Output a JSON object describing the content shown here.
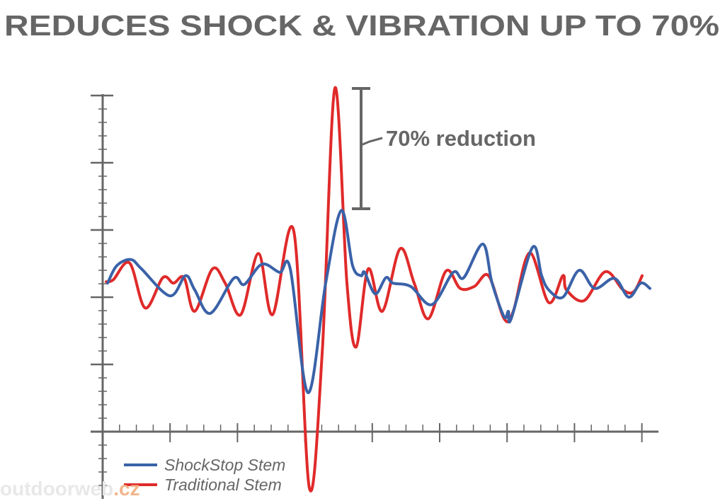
{
  "chart_data": {
    "type": "line",
    "title": "REDUCES SHOCK & VIBRATION UP TO 70%",
    "xlabel": "",
    "ylabel": "",
    "xlim": [
      0,
      785
    ],
    "ylim": [
      -1,
      5
    ],
    "grid": false,
    "legend_position": "bottom-left",
    "annotation": "70% reduction",
    "series": [
      {
        "name": "ShockStop Stem",
        "color": "#3a62a8",
        "x": [
          7,
          20,
          40,
          55,
          95,
          117,
          130,
          152,
          185,
          200,
          225,
          250,
          265,
          290,
          315,
          337,
          353,
          365,
          370,
          385,
          400,
          410,
          435,
          465,
          495,
          510,
          537,
          550,
          567,
          573,
          577,
          607,
          620,
          630,
          650,
          673,
          695,
          723,
          743,
          760,
          773
        ],
        "y": [
          2.21,
          2.47,
          2.56,
          2.42,
          2.02,
          2.32,
          2.11,
          1.76,
          2.28,
          2.19,
          2.49,
          2.37,
          2.42,
          0.58,
          2.21,
          3.29,
          2.47,
          2.32,
          2.37,
          2.05,
          2.29,
          2.21,
          2.16,
          1.89,
          2.37,
          2.29,
          2.79,
          2.21,
          1.71,
          1.79,
          1.68,
          2.74,
          2.32,
          2.11,
          2.0,
          2.4,
          2.13,
          2.28,
          2.0,
          2.21,
          2.13
        ]
      },
      {
        "name": "Traditional Stem",
        "color": "#e02a2a",
        "x": [
          5,
          15,
          38,
          60,
          85,
          100,
          115,
          130,
          155,
          173,
          195,
          220,
          240,
          270,
          292,
          310,
          328,
          345,
          358,
          375,
          395,
          420,
          440,
          460,
          485,
          505,
          525,
          545,
          567,
          580,
          603,
          630,
          650,
          655,
          680,
          710,
          735,
          750,
          762
        ],
        "y": [
          2.23,
          2.26,
          2.51,
          1.84,
          2.29,
          2.21,
          2.29,
          1.79,
          2.42,
          2.21,
          1.74,
          2.65,
          1.74,
          2.98,
          -0.84,
          1.16,
          5.11,
          2.21,
          1.26,
          2.42,
          1.79,
          2.72,
          2.21,
          1.68,
          2.39,
          2.13,
          2.16,
          2.32,
          1.68,
          1.79,
          2.66,
          1.92,
          2.32,
          2.11,
          1.95,
          2.38,
          2.11,
          2.08,
          2.32
        ]
      }
    ]
  },
  "watermark": {
    "main": "outdoorweb",
    "suffix": ".cz"
  }
}
